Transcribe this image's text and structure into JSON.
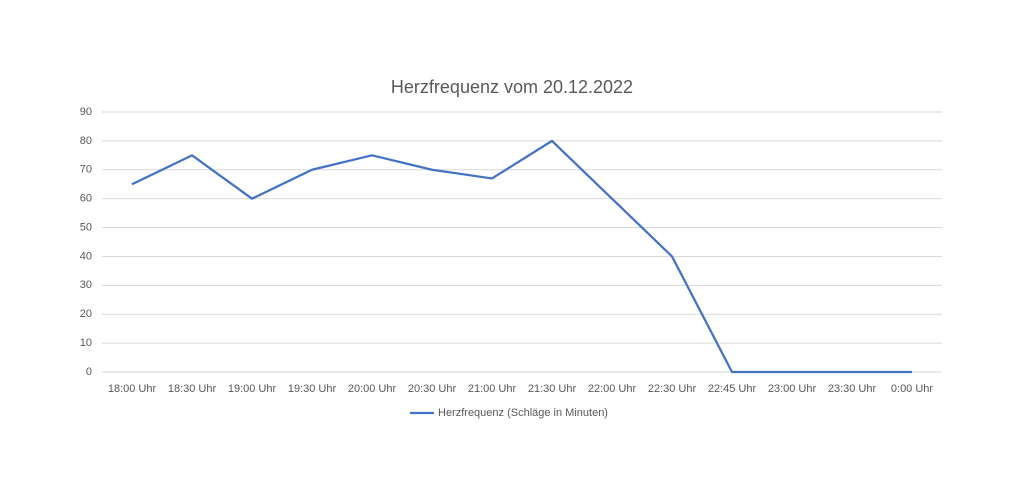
{
  "chart_data": {
    "type": "line",
    "title": "Herzfrequenz vom 20.12.2022",
    "categories": [
      "18:00 Uhr",
      "18:30 Uhr",
      "19:00 Uhr",
      "19:30 Uhr",
      "20:00 Uhr",
      "20:30 Uhr",
      "21:00 Uhr",
      "21:30 Uhr",
      "22:00 Uhr",
      "22:30 Uhr",
      "22:45 Uhr",
      "23:00 Uhr",
      "23:30 Uhr",
      "0:00 Uhr"
    ],
    "series": [
      {
        "name": "Herzfrequenz (Schläge in Minuten)",
        "color": "#4472c4",
        "values": [
          65,
          75,
          60,
          70,
          75,
          70,
          67,
          80,
          60,
          40,
          0,
          0,
          0,
          0
        ]
      }
    ],
    "ylim": [
      0,
      90
    ],
    "yticks": [
      0,
      10,
      20,
      30,
      40,
      50,
      60,
      70,
      80,
      90
    ],
    "grid": true,
    "legend": "bottom"
  }
}
